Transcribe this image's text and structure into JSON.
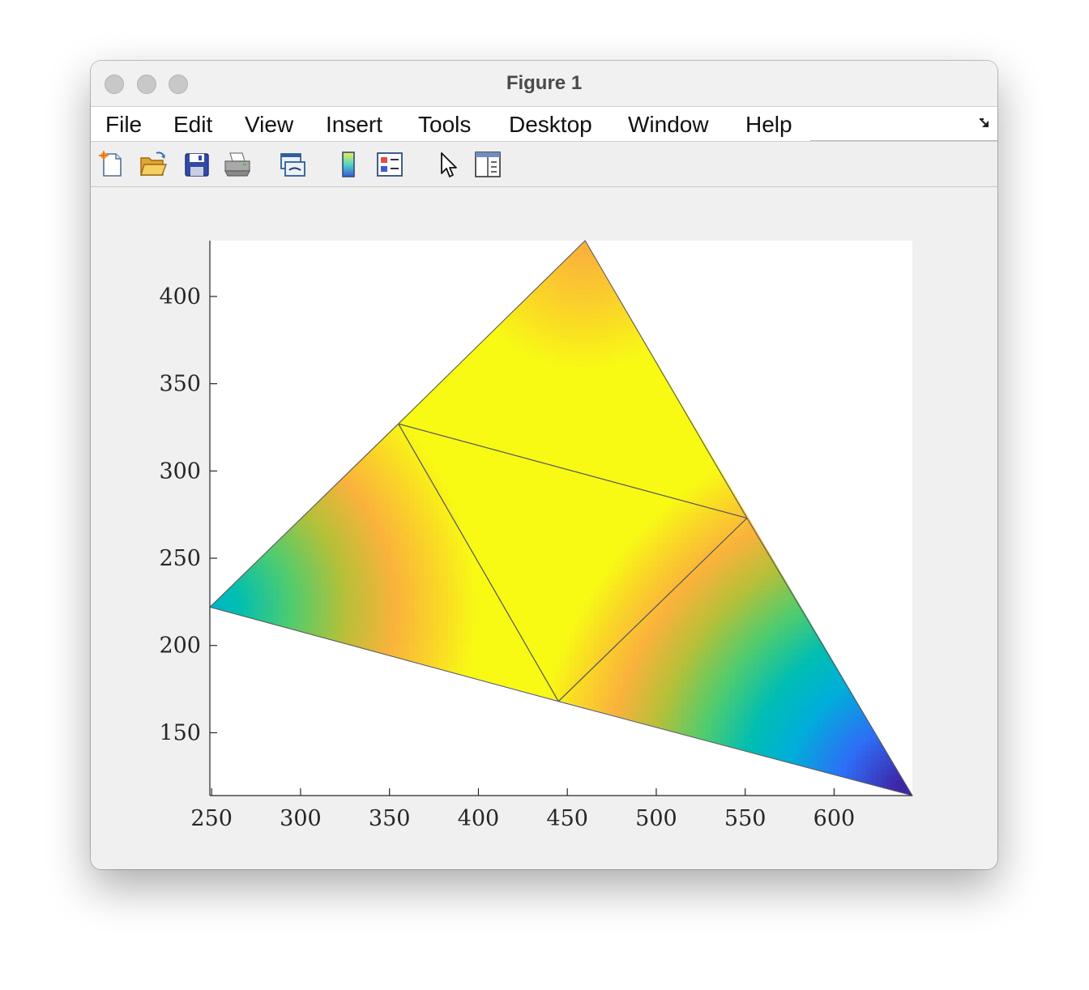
{
  "window": {
    "title": "Figure 1"
  },
  "menu": {
    "items": [
      "File",
      "Edit",
      "View",
      "Insert",
      "Tools",
      "Desktop",
      "Window",
      "Help"
    ]
  },
  "toolbar": {
    "buttons": [
      {
        "icon": "new-figure-icon"
      },
      {
        "icon": "open-file-icon"
      },
      {
        "icon": "save-icon"
      },
      {
        "icon": "print-icon"
      },
      {
        "icon": "link-plot-icon"
      },
      {
        "icon": "insert-colorbar-icon"
      },
      {
        "icon": "insert-legend-icon"
      },
      {
        "icon": "edit-plot-pointer-icon"
      },
      {
        "icon": "property-inspector-icon"
      }
    ]
  },
  "chart_data": {
    "type": "patch",
    "title": "",
    "xlabel": "",
    "ylabel": "",
    "xlim": [
      249,
      644
    ],
    "ylim": [
      114,
      432
    ],
    "xticks": [
      250,
      300,
      350,
      400,
      450,
      500,
      550,
      600
    ],
    "yticks": [
      150,
      200,
      250,
      300,
      350,
      400
    ],
    "grid": false,
    "colormap": "parula",
    "vertices": [
      {
        "id": "A",
        "x": 249,
        "y": 222
      },
      {
        "id": "B",
        "x": 460,
        "y": 432
      },
      {
        "id": "C",
        "x": 644,
        "y": 114
      },
      {
        "id": "D",
        "x": 355,
        "y": 327
      },
      {
        "id": "E",
        "x": 551,
        "y": 273
      },
      {
        "id": "F",
        "x": 445,
        "y": 168
      }
    ],
    "faces": [
      [
        "A",
        "D",
        "F"
      ],
      [
        "D",
        "B",
        "E"
      ],
      [
        "F",
        "E",
        "C"
      ],
      [
        "D",
        "E",
        "F"
      ]
    ],
    "edge_color": "#5a5a5a"
  }
}
